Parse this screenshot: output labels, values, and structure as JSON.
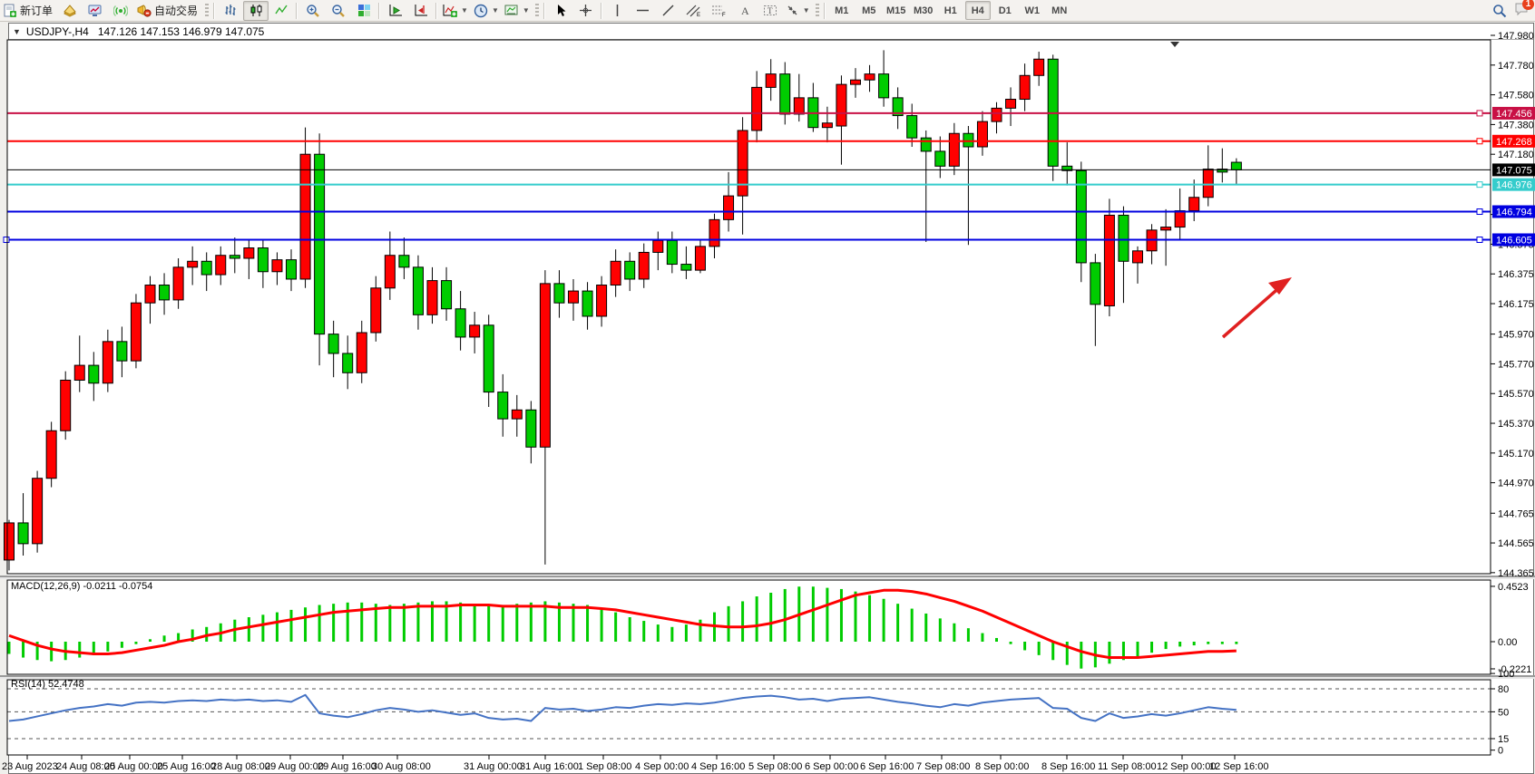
{
  "toolbar": {
    "new_order_label": "新订单",
    "autotrading_label": "自动交易",
    "timeframes": [
      "M1",
      "M5",
      "M15",
      "M30",
      "H1",
      "H4",
      "D1",
      "W1",
      "MN"
    ],
    "active_timeframe": "H4",
    "notification_count": "1"
  },
  "chart": {
    "expand_glyph": "▼",
    "symbol_period": "USDJPY-,H4",
    "ohlc_text": "147.126 147.153 146.979 147.075",
    "macd_label": "MACD(12,26,9) -0.0211 -0.0754",
    "rsi_label": "RSI(14) 52.4748"
  },
  "chart_data": {
    "type": "candlestick",
    "symbol": "USDJPY-",
    "period": "H4",
    "colors": {
      "bull": "#FF0000",
      "bear": "#00CC00",
      "wick": "#000000",
      "macd_hist": "#00CC00",
      "macd_signal": "#FF0000",
      "rsi_line": "#4472C4",
      "line_crimson": "#C81045",
      "line_red": "#FF0000",
      "line_cyan": "#35CCCC",
      "line_blue": "#0000E0",
      "current_price_line": "#000000",
      "trend_arrow": "#E02020"
    },
    "price_axis_ticks": [
      "147.980",
      "147.780",
      "147.580",
      "147.380",
      "147.180",
      "146.775",
      "146.575",
      "146.375",
      "146.175",
      "145.970",
      "145.770",
      "145.570",
      "145.370",
      "145.170",
      "144.970",
      "144.765",
      "144.565",
      "144.365"
    ],
    "hlines": [
      {
        "price": 147.456,
        "label": "147.456",
        "color": "#C81045",
        "width": 2
      },
      {
        "price": 147.268,
        "label": "147.268",
        "color": "#FF0000",
        "width": 2
      },
      {
        "price": 146.976,
        "label": "146.976",
        "color": "#35CCCC",
        "width": 2
      },
      {
        "price": 146.794,
        "label": "146.794",
        "color": "#0000E0",
        "width": 2
      },
      {
        "price": 146.605,
        "label": "146.605",
        "color": "#0000E0",
        "width": 2,
        "left_handle": true
      }
    ],
    "current_price": {
      "price": 147.075,
      "label": "147.075"
    },
    "time_labels": [
      "23 Aug 2023",
      "24 Aug 08:00",
      "25 Aug 00:00",
      "25 Aug 16:00",
      "28 Aug 08:00",
      "29 Aug 00:00",
      "29 Aug 16:00",
      "30 Aug 08:00",
      "31 Aug 00:00",
      "31 Aug 16:00",
      "1 Sep 08:00",
      "4 Sep 00:00",
      "4 Sep 16:00",
      "5 Sep 08:00",
      "6 Sep 00:00",
      "6 Sep 16:00",
      "7 Sep 08:00",
      "8 Sep 00:00",
      "8 Sep 16:00",
      "11 Sep 08:00",
      "12 Sep 00:00",
      "12 Sep 16:00"
    ],
    "candles": [
      [
        144.45,
        144.72,
        144.38,
        144.7
      ],
      [
        144.7,
        144.9,
        144.48,
        144.56
      ],
      [
        144.56,
        145.05,
        144.5,
        145.0
      ],
      [
        145.0,
        145.38,
        144.94,
        145.32
      ],
      [
        145.32,
        145.72,
        145.26,
        145.66
      ],
      [
        145.66,
        145.96,
        145.58,
        145.76
      ],
      [
        145.76,
        145.85,
        145.52,
        145.64
      ],
      [
        145.64,
        146.0,
        145.58,
        145.92
      ],
      [
        145.92,
        146.02,
        145.68,
        145.79
      ],
      [
        145.79,
        146.24,
        145.74,
        146.18
      ],
      [
        146.18,
        146.36,
        146.04,
        146.3
      ],
      [
        146.3,
        146.38,
        146.1,
        146.2
      ],
      [
        146.2,
        146.48,
        146.14,
        146.42
      ],
      [
        146.42,
        146.56,
        146.3,
        146.46
      ],
      [
        146.46,
        146.52,
        146.26,
        146.37
      ],
      [
        146.37,
        146.56,
        146.3,
        146.5
      ],
      [
        146.5,
        146.62,
        146.38,
        146.48
      ],
      [
        146.48,
        146.6,
        146.34,
        146.55
      ],
      [
        146.55,
        146.6,
        146.28,
        146.39
      ],
      [
        146.39,
        146.52,
        146.3,
        146.47
      ],
      [
        146.47,
        146.54,
        146.26,
        146.34
      ],
      [
        146.34,
        147.36,
        146.28,
        147.18
      ],
      [
        147.18,
        147.32,
        145.76,
        145.97
      ],
      [
        145.97,
        146.06,
        145.68,
        145.84
      ],
      [
        145.84,
        145.96,
        145.6,
        145.71
      ],
      [
        145.71,
        146.06,
        145.64,
        145.98
      ],
      [
        145.98,
        146.36,
        145.92,
        146.28
      ],
      [
        146.28,
        146.66,
        146.2,
        146.5
      ],
      [
        146.5,
        146.62,
        146.34,
        146.42
      ],
      [
        146.42,
        146.5,
        146.0,
        146.1
      ],
      [
        146.1,
        146.42,
        146.04,
        146.33
      ],
      [
        146.33,
        146.42,
        146.06,
        146.14
      ],
      [
        146.14,
        146.26,
        145.86,
        145.95
      ],
      [
        145.95,
        146.12,
        145.84,
        146.03
      ],
      [
        146.03,
        146.1,
        145.48,
        145.58
      ],
      [
        145.58,
        145.7,
        145.28,
        145.4
      ],
      [
        145.4,
        145.56,
        145.28,
        145.46
      ],
      [
        145.46,
        145.52,
        145.1,
        145.21
      ],
      [
        145.21,
        146.4,
        144.42,
        146.31
      ],
      [
        146.31,
        146.4,
        146.08,
        146.18
      ],
      [
        146.18,
        146.34,
        146.06,
        146.26
      ],
      [
        146.26,
        146.32,
        146.0,
        146.09
      ],
      [
        146.09,
        146.36,
        146.02,
        146.3
      ],
      [
        146.3,
        146.54,
        146.22,
        146.46
      ],
      [
        146.46,
        146.52,
        146.26,
        146.34
      ],
      [
        146.34,
        146.58,
        146.28,
        146.52
      ],
      [
        146.52,
        146.66,
        146.4,
        146.6
      ],
      [
        146.6,
        146.66,
        146.38,
        146.44
      ],
      [
        146.44,
        146.56,
        146.34,
        146.4
      ],
      [
        146.4,
        146.6,
        146.38,
        146.56
      ],
      [
        146.56,
        146.78,
        146.48,
        146.74
      ],
      [
        146.74,
        147.06,
        146.66,
        146.9
      ],
      [
        146.9,
        147.43,
        146.64,
        147.34
      ],
      [
        147.34,
        147.74,
        147.26,
        147.63
      ],
      [
        147.63,
        147.82,
        147.54,
        147.72
      ],
      [
        147.72,
        147.8,
        147.38,
        147.45
      ],
      [
        147.45,
        147.72,
        147.4,
        147.56
      ],
      [
        147.56,
        147.66,
        147.33,
        147.36
      ],
      [
        147.36,
        147.5,
        147.26,
        147.39
      ],
      [
        147.37,
        147.71,
        147.11,
        147.65
      ],
      [
        147.65,
        147.76,
        147.56,
        147.68
      ],
      [
        147.68,
        147.78,
        147.6,
        147.72
      ],
      [
        147.72,
        147.88,
        147.5,
        147.56
      ],
      [
        147.56,
        147.63,
        147.35,
        147.44
      ],
      [
        147.44,
        147.52,
        147.23,
        147.29
      ],
      [
        147.29,
        147.34,
        146.59,
        147.2
      ],
      [
        147.2,
        147.3,
        147.02,
        147.1
      ],
      [
        147.1,
        147.39,
        147.04,
        147.32
      ],
      [
        147.32,
        147.37,
        146.57,
        147.23
      ],
      [
        147.23,
        147.47,
        147.17,
        147.4
      ],
      [
        147.4,
        147.53,
        147.32,
        147.49
      ],
      [
        147.49,
        147.63,
        147.37,
        147.55
      ],
      [
        147.55,
        147.79,
        147.47,
        147.71
      ],
      [
        147.71,
        147.87,
        147.64,
        147.82
      ],
      [
        147.82,
        147.85,
        147.0,
        147.1
      ],
      [
        147.1,
        147.26,
        146.97,
        147.07
      ],
      [
        147.07,
        147.13,
        146.32,
        146.45
      ],
      [
        146.45,
        146.51,
        145.89,
        146.17
      ],
      [
        146.16,
        146.88,
        146.09,
        146.77
      ],
      [
        146.77,
        146.83,
        146.18,
        146.46
      ],
      [
        146.45,
        146.56,
        146.31,
        146.53
      ],
      [
        146.53,
        146.71,
        146.44,
        146.67
      ],
      [
        146.67,
        146.81,
        146.43,
        146.69
      ],
      [
        146.69,
        146.95,
        146.61,
        146.8
      ],
      [
        146.8,
        147.01,
        146.73,
        146.89
      ],
      [
        146.89,
        147.24,
        146.83,
        147.08
      ],
      [
        147.08,
        147.22,
        146.99,
        147.06
      ],
      [
        147.126,
        147.153,
        146.979,
        147.075
      ]
    ],
    "macd": {
      "label": "MACD(12,26,9) -0.0211 -0.0754",
      "axis_labels": [
        "0.4523",
        "0.00",
        "-0.2221"
      ],
      "hist": [
        -0.1,
        -0.13,
        -0.15,
        -0.16,
        -0.15,
        -0.13,
        -0.11,
        -0.08,
        -0.05,
        -0.02,
        0.02,
        0.05,
        0.07,
        0.1,
        0.12,
        0.15,
        0.18,
        0.2,
        0.22,
        0.24,
        0.26,
        0.28,
        0.3,
        0.31,
        0.32,
        0.32,
        0.31,
        0.3,
        0.31,
        0.32,
        0.33,
        0.33,
        0.32,
        0.31,
        0.3,
        0.3,
        0.31,
        0.32,
        0.33,
        0.32,
        0.31,
        0.3,
        0.27,
        0.24,
        0.2,
        0.17,
        0.14,
        0.12,
        0.14,
        0.18,
        0.24,
        0.29,
        0.33,
        0.37,
        0.4,
        0.43,
        0.45,
        0.45,
        0.44,
        0.43,
        0.41,
        0.38,
        0.35,
        0.31,
        0.27,
        0.23,
        0.19,
        0.15,
        0.11,
        0.07,
        0.03,
        -0.02,
        -0.07,
        -0.11,
        -0.15,
        -0.19,
        -0.22,
        -0.21,
        -0.18,
        -0.15,
        -0.12,
        -0.09,
        -0.06,
        -0.04,
        -0.03,
        -0.02,
        -0.02,
        -0.02
      ],
      "signal": [
        0.05,
        0.01,
        -0.03,
        -0.06,
        -0.08,
        -0.09,
        -0.1,
        -0.1,
        -0.09,
        -0.07,
        -0.05,
        -0.03,
        0.0,
        0.02,
        0.05,
        0.07,
        0.1,
        0.12,
        0.14,
        0.16,
        0.18,
        0.2,
        0.22,
        0.24,
        0.25,
        0.26,
        0.27,
        0.28,
        0.28,
        0.29,
        0.29,
        0.29,
        0.3,
        0.3,
        0.3,
        0.29,
        0.29,
        0.29,
        0.29,
        0.28,
        0.28,
        0.28,
        0.27,
        0.26,
        0.24,
        0.22,
        0.2,
        0.18,
        0.16,
        0.14,
        0.13,
        0.12,
        0.12,
        0.13,
        0.15,
        0.18,
        0.22,
        0.26,
        0.3,
        0.34,
        0.38,
        0.4,
        0.42,
        0.42,
        0.41,
        0.39,
        0.36,
        0.33,
        0.29,
        0.25,
        0.2,
        0.15,
        0.1,
        0.05,
        0.0,
        -0.04,
        -0.08,
        -0.11,
        -0.13,
        -0.13,
        -0.13,
        -0.12,
        -0.11,
        -0.1,
        -0.09,
        -0.08,
        -0.08,
        -0.075
      ]
    },
    "rsi": {
      "label": "RSI(14) 52.4748",
      "axis_labels": [
        "100",
        "80",
        "50",
        "15",
        "0"
      ],
      "levels": [
        80,
        50,
        15
      ],
      "values": [
        38,
        40,
        44,
        48,
        52,
        55,
        57,
        60,
        58,
        62,
        63,
        62,
        64,
        65,
        64,
        66,
        65,
        66,
        64,
        65,
        63,
        72,
        48,
        45,
        43,
        47,
        52,
        55,
        53,
        50,
        52,
        49,
        46,
        48,
        42,
        40,
        41,
        38,
        55,
        53,
        54,
        51,
        53,
        56,
        55,
        58,
        60,
        59,
        61,
        60,
        62,
        65,
        68,
        70,
        71,
        69,
        66,
        67,
        64,
        67,
        68,
        69,
        66,
        63,
        61,
        58,
        56,
        60,
        58,
        62,
        64,
        66,
        67,
        68,
        55,
        54,
        42,
        38,
        48,
        42,
        44,
        47,
        45,
        48,
        52,
        56,
        54,
        52.47
      ],
      "ylim": [
        0,
        100
      ]
    },
    "trend_arrow": {
      "color": "#E02020",
      "direction": "up-right"
    }
  }
}
